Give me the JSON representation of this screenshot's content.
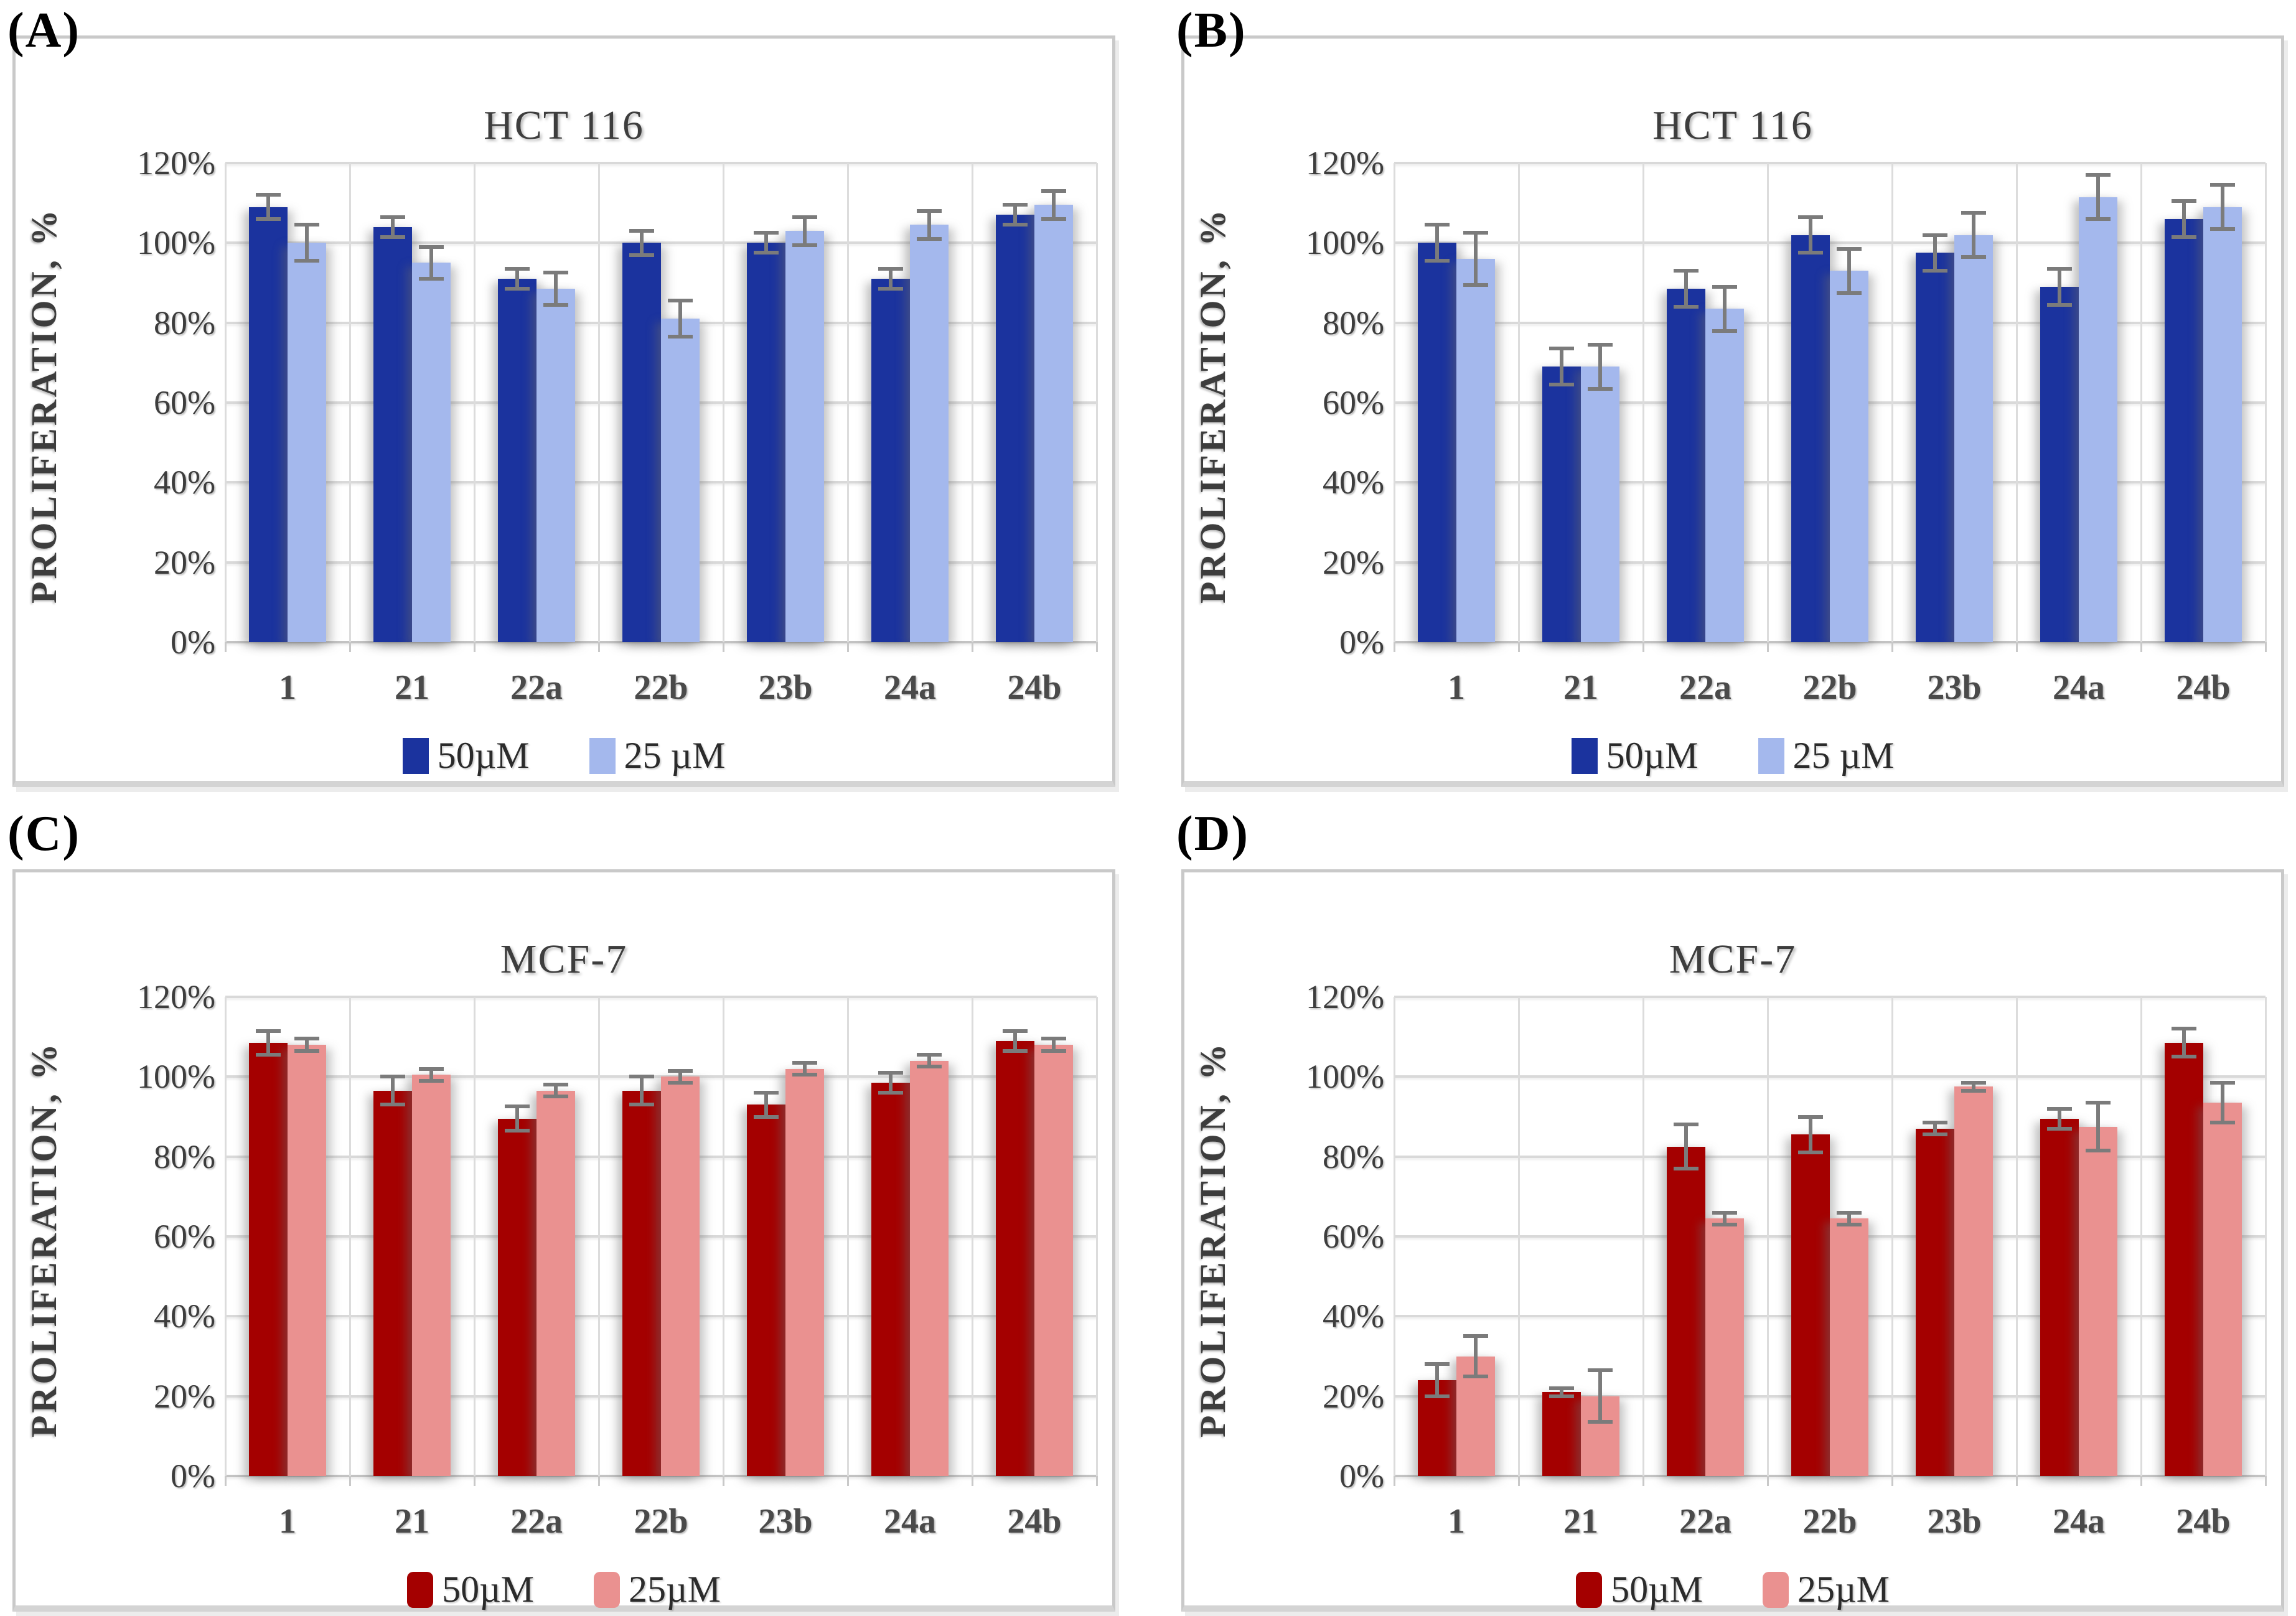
{
  "figure": {
    "description": "Four-panel bar chart figure of cell proliferation assays",
    "background_color": "#ffffff",
    "grid_color": "#d9d9d9",
    "error_bar_color": "#7b7b7b",
    "text_color": "#3d3d3d"
  },
  "chart_data": [
    {
      "type": "bar",
      "panel_label": "(A)",
      "title": "HCT 116",
      "ylabel": "PROLIFERATION, %",
      "ylim": [
        0,
        120
      ],
      "ystep": 20,
      "ytick_suffix": "%",
      "grid": true,
      "legend_position": "bottom",
      "categories": [
        "1",
        "21",
        "22a",
        "22b",
        "23b",
        "24a",
        "24b"
      ],
      "series": [
        {
          "name": "50µM",
          "color": "#1B339E",
          "values": [
            109,
            104,
            91,
            100,
            100,
            91,
            107
          ],
          "errors": [
            3,
            2.5,
            2.5,
            3,
            2.5,
            2.5,
            2.5
          ]
        },
        {
          "name": "25 µM",
          "color": "#A4B8ED",
          "values": [
            100,
            95,
            88.5,
            81,
            103,
            104.5,
            109.5
          ],
          "errors": [
            4.5,
            4,
            4,
            4.5,
            3.5,
            3.5,
            3.5
          ]
        }
      ]
    },
    {
      "type": "bar",
      "panel_label": "(B)",
      "title": "HCT 116",
      "ylabel": "PROLIFERATION, %",
      "ylim": [
        0,
        120
      ],
      "ystep": 20,
      "ytick_suffix": "%",
      "grid": true,
      "legend_position": "bottom",
      "categories": [
        "1",
        "21",
        "22a",
        "22b",
        "23b",
        "24a",
        "24b"
      ],
      "series": [
        {
          "name": "50µM",
          "color": "#1B339E",
          "values": [
            100,
            69,
            88.5,
            102,
            97.5,
            89,
            106
          ],
          "errors": [
            4.5,
            4.5,
            4.5,
            4.5,
            4.5,
            4.5,
            4.5
          ]
        },
        {
          "name": "25 µM",
          "color": "#A4B8ED",
          "values": [
            96,
            69,
            83.5,
            93,
            102,
            111.5,
            109
          ],
          "errors": [
            6.5,
            5.5,
            5.5,
            5.5,
            5.5,
            5.5,
            5.5
          ]
        }
      ]
    },
    {
      "type": "bar",
      "panel_label": "(C)",
      "title": "MCF-7",
      "ylabel": "PROLIFERATION, %",
      "ylim": [
        0,
        120
      ],
      "ystep": 20,
      "ytick_suffix": "%",
      "grid": true,
      "legend_position": "bottom",
      "categories": [
        "1",
        "21",
        "22a",
        "22b",
        "23b",
        "24a",
        "24b"
      ],
      "series": [
        {
          "name": "50µM",
          "color": "#A40000",
          "values": [
            108.5,
            96.5,
            89.5,
            96.5,
            93,
            98.5,
            109
          ],
          "errors": [
            3,
            3.5,
            3,
            3.5,
            3,
            2.5,
            2.5
          ]
        },
        {
          "name": "25µM",
          "color": "#EA9190",
          "values": [
            108,
            100.5,
            96.5,
            100,
            102,
            104,
            108
          ],
          "errors": [
            1.5,
            1.5,
            1.5,
            1.5,
            1.5,
            1.5,
            1.5
          ]
        }
      ]
    },
    {
      "type": "bar",
      "panel_label": "(D)",
      "title": "MCF-7",
      "ylabel": "PROLIFERATION, %",
      "ylim": [
        0,
        120
      ],
      "ystep": 20,
      "ytick_suffix": "%",
      "grid": true,
      "legend_position": "bottom",
      "categories": [
        "1",
        "21",
        "22a",
        "22b",
        "23b",
        "24a",
        "24b"
      ],
      "series": [
        {
          "name": "50µM",
          "color": "#A40000",
          "values": [
            24,
            21,
            82.5,
            85.5,
            87,
            89.5,
            108.5
          ],
          "errors": [
            4,
            1,
            5.5,
            4.5,
            1.5,
            2.5,
            3.5
          ]
        },
        {
          "name": "25µM",
          "color": "#EA9190",
          "values": [
            30,
            20,
            64.5,
            64.5,
            97.5,
            87.5,
            93.5
          ],
          "errors": [
            5,
            6.5,
            1.5,
            1.5,
            1,
            6,
            5
          ]
        }
      ]
    }
  ]
}
